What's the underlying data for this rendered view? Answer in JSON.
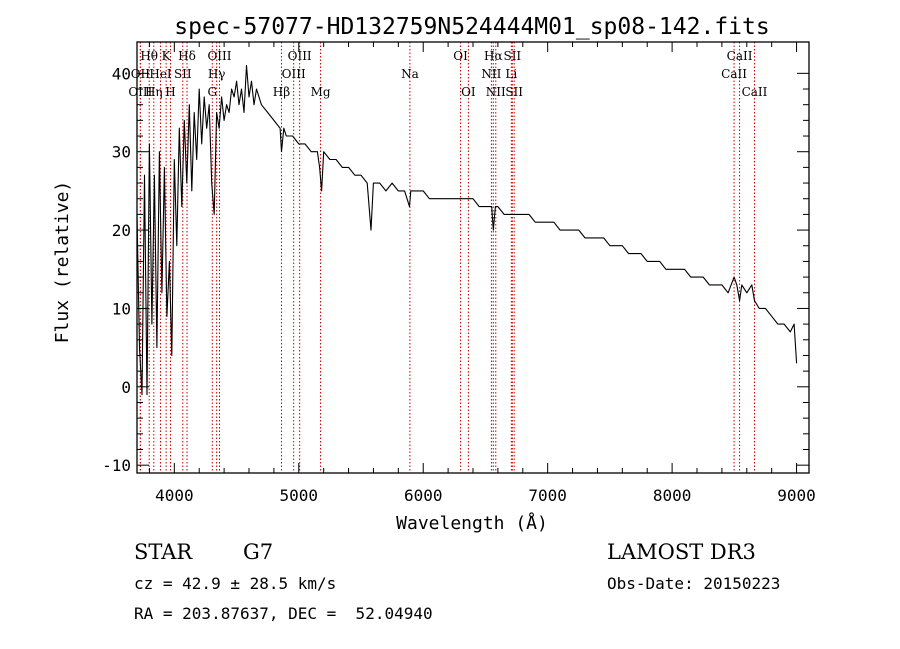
{
  "chart_data": {
    "type": "line",
    "title": "spec-57077-HD132759N524444M01_sp08-142.fits",
    "xlabel": "Wavelength (Å)",
    "ylabel": "Flux (relative)",
    "xlim": [
      3700,
      9100
    ],
    "ylim": [
      -11,
      44
    ],
    "x_ticks": [
      4000,
      5000,
      6000,
      7000,
      8000,
      9000
    ],
    "y_ticks": [
      -10,
      0,
      10,
      20,
      30,
      40
    ],
    "grid": false,
    "series": [
      {
        "name": "flux",
        "x": [
          3700,
          3720,
          3740,
          3760,
          3780,
          3800,
          3820,
          3840,
          3860,
          3880,
          3900,
          3920,
          3940,
          3960,
          3980,
          4000,
          4020,
          4040,
          4060,
          4080,
          4100,
          4120,
          4140,
          4160,
          4180,
          4200,
          4220,
          4240,
          4260,
          4280,
          4300,
          4320,
          4340,
          4360,
          4380,
          4400,
          4420,
          4440,
          4460,
          4480,
          4500,
          4520,
          4540,
          4560,
          4580,
          4600,
          4620,
          4640,
          4660,
          4680,
          4700,
          4750,
          4800,
          4850,
          4861,
          4880,
          4900,
          4950,
          5000,
          5050,
          5100,
          5150,
          5167,
          5183,
          5200,
          5250,
          5300,
          5350,
          5400,
          5450,
          5500,
          5550,
          5580,
          5600,
          5650,
          5700,
          5750,
          5800,
          5850,
          5890,
          5900,
          5950,
          6000,
          6050,
          6100,
          6150,
          6200,
          6250,
          6300,
          6350,
          6400,
          6450,
          6500,
          6550,
          6563,
          6580,
          6600,
          6650,
          6700,
          6750,
          6800,
          6850,
          6900,
          6950,
          7000,
          7050,
          7100,
          7150,
          7200,
          7250,
          7300,
          7350,
          7400,
          7450,
          7500,
          7550,
          7600,
          7650,
          7700,
          7750,
          7800,
          7850,
          7900,
          7950,
          8000,
          8050,
          8100,
          8150,
          8200,
          8250,
          8300,
          8350,
          8400,
          8450,
          8498,
          8520,
          8542,
          8560,
          8600,
          8640,
          8662,
          8700,
          8750,
          8800,
          8850,
          8900,
          8950,
          8980,
          9000
        ],
        "values": [
          22,
          5,
          -1,
          27,
          -1,
          31,
          8,
          27,
          5,
          30,
          12,
          28,
          9,
          16,
          4,
          29,
          18,
          33,
          23,
          34,
          26,
          36,
          25,
          35,
          29,
          38,
          31,
          37,
          33,
          36,
          26,
          22,
          35,
          33,
          37,
          34,
          36,
          35,
          38,
          37,
          39,
          36,
          38,
          35,
          41,
          37,
          39,
          36,
          38,
          37,
          36,
          35,
          34,
          33,
          30,
          33,
          32,
          32,
          31,
          31,
          30,
          30,
          28,
          25,
          30,
          29,
          29,
          28,
          28,
          27,
          27,
          26,
          20,
          26,
          26,
          25,
          26,
          25,
          25,
          23,
          25,
          25,
          25,
          24,
          24,
          24,
          24,
          24,
          24,
          24,
          24,
          23,
          23,
          23,
          20,
          23,
          23,
          22,
          22,
          22,
          22,
          22,
          21,
          21,
          21,
          21,
          20,
          20,
          20,
          20,
          19,
          19,
          19,
          19,
          18,
          18,
          18,
          17,
          17,
          17,
          16,
          16,
          16,
          15,
          15,
          15,
          15,
          14,
          14,
          14,
          13,
          13,
          13,
          12,
          14,
          13,
          11,
          13,
          12,
          13,
          11,
          10,
          10,
          9,
          8,
          8,
          7,
          8,
          3
        ]
      }
    ],
    "line_markers": [
      {
        "label": "Hθ",
        "wavelength": 3798,
        "row": 1
      },
      {
        "label": "OII",
        "wavelength": 3727,
        "row": 2
      },
      {
        "label": "OIII",
        "wavelength": 3727,
        "row": 3
      },
      {
        "label": "Hη",
        "wavelength": 3835,
        "row": 3
      },
      {
        "label": "K",
        "wavelength": 3934,
        "row": 1
      },
      {
        "label": "HeI",
        "wavelength": 3889,
        "row": 2
      },
      {
        "label": "SII",
        "wavelength": 4068,
        "row": 2
      },
      {
        "label": "H",
        "wavelength": 3969,
        "row": 3
      },
      {
        "label": "Hδ",
        "wavelength": 4102,
        "row": 1
      },
      {
        "label": "OIII",
        "wavelength": 4363,
        "row": 1
      },
      {
        "label": "Hγ",
        "wavelength": 4340,
        "row": 2
      },
      {
        "label": "G",
        "wavelength": 4305,
        "row": 3
      },
      {
        "label": "Hβ",
        "wavelength": 4861,
        "row": 3
      },
      {
        "label": "OIII",
        "wavelength": 5007,
        "row": 1
      },
      {
        "label": "OIII",
        "wavelength": 4959,
        "row": 2
      },
      {
        "label": "Mg",
        "wavelength": 5175,
        "row": 3
      },
      {
        "label": "Na",
        "wavelength": 5893,
        "row": 2
      },
      {
        "label": "OI",
        "wavelength": 6300,
        "row": 1
      },
      {
        "label": "OI",
        "wavelength": 6363,
        "row": 3
      },
      {
        "label": "Hα",
        "wavelength": 6563,
        "row": 1
      },
      {
        "label": "NII",
        "wavelength": 6548,
        "row": 2
      },
      {
        "label": "NII",
        "wavelength": 6583,
        "row": 3
      },
      {
        "label": "SII",
        "wavelength": 6716,
        "row": 1
      },
      {
        "label": "Li",
        "wavelength": 6708,
        "row": 2
      },
      {
        "label": "SII",
        "wavelength": 6731,
        "row": 3
      },
      {
        "label": "CaII",
        "wavelength": 8542,
        "row": 1
      },
      {
        "label": "CaII",
        "wavelength": 8498,
        "row": 2
      },
      {
        "label": "CaII",
        "wavelength": 8662,
        "row": 3
      }
    ]
  },
  "info": {
    "object_class": "STAR",
    "subclass": "G7",
    "survey": "LAMOST DR3",
    "redshift_line": "cz = 42.9 ± 28.5 km/s",
    "obs_date_line": "Obs-Date: 20150223",
    "coords_line": "RA = 203.87637, DEC =  52.04940"
  },
  "colors": {
    "spectrum": "#000000",
    "marker_line": "#cc0000",
    "text": "#000000"
  }
}
